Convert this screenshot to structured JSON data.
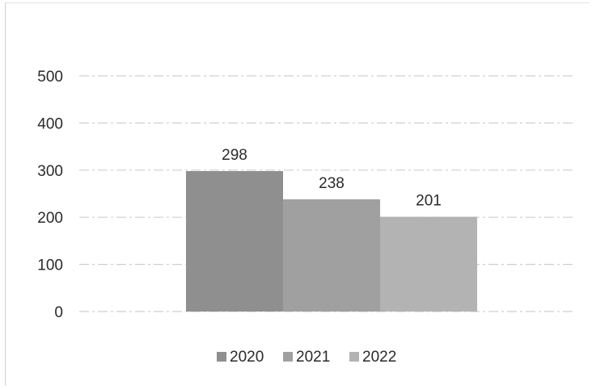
{
  "chart_data": {
    "type": "bar",
    "title": "",
    "xlabel": "",
    "ylabel": "",
    "ylim": [
      0,
      500
    ],
    "yticks": [
      0,
      100,
      200,
      300,
      400,
      500
    ],
    "grid": true,
    "legend_position": "bottom",
    "series": [
      {
        "name": "2020",
        "value": 298,
        "color": "#8f8f8f"
      },
      {
        "name": "2021",
        "value": 238,
        "color": "#a0a0a0"
      },
      {
        "name": "2022",
        "value": 201,
        "color": "#b3b3b3"
      }
    ]
  }
}
